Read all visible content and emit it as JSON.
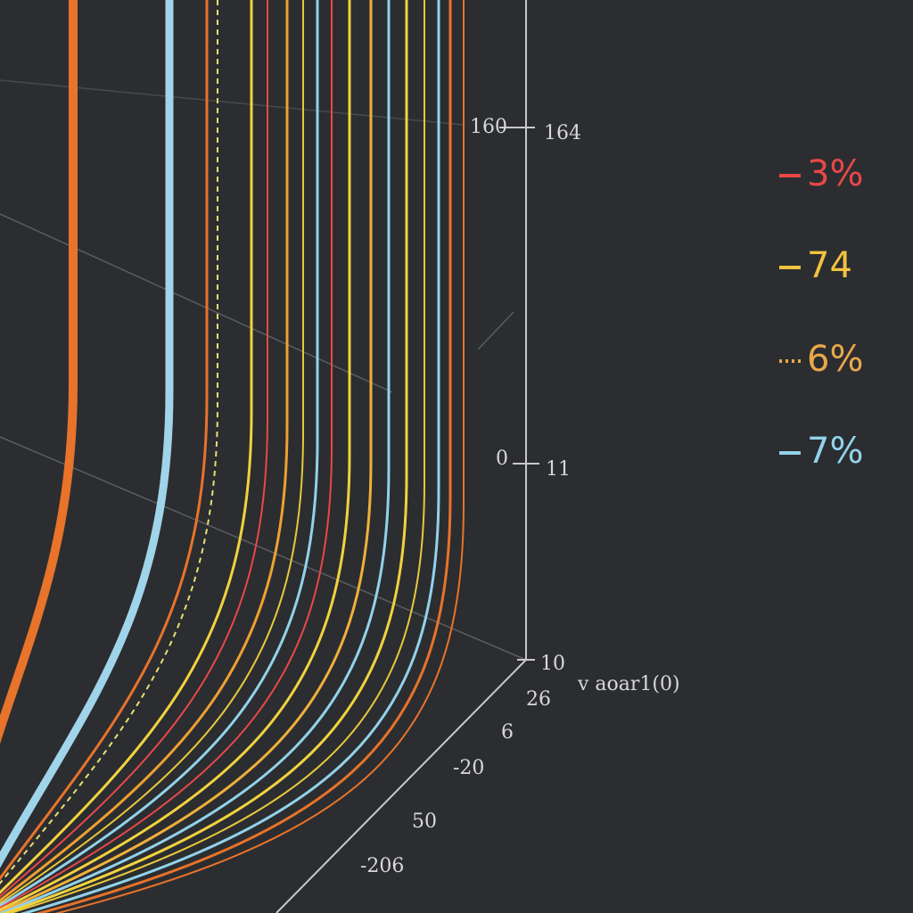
{
  "axis": {
    "top_left": "160",
    "top_right": "164",
    "mid_left": "0",
    "mid_right": "11",
    "base_label": "10",
    "base_title": "v aoar1(0)",
    "depth": [
      "26",
      "6",
      "-20",
      "50",
      "-206"
    ]
  },
  "legend": [
    "3%",
    "74",
    "6%",
    "7%"
  ]
}
